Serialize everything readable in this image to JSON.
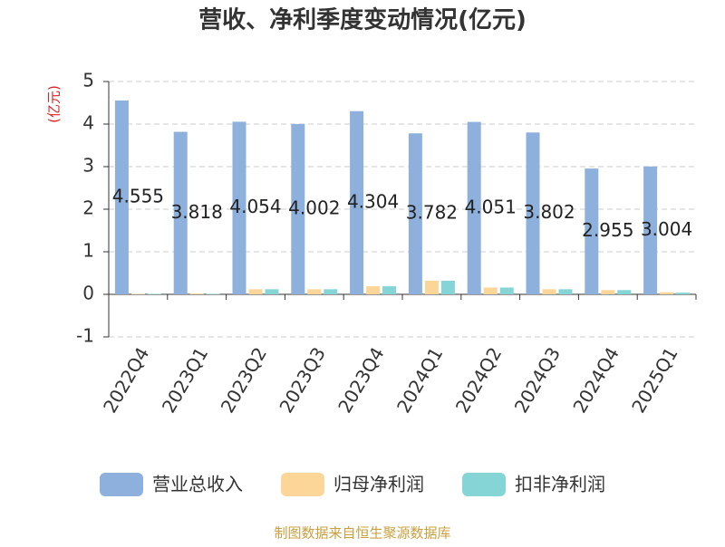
{
  "chart_data": {
    "type": "bar",
    "title": "营收、净利季度变动情况(亿元)",
    "y_label": "(亿元)",
    "categories": [
      "2022Q4",
      "2023Q1",
      "2023Q2",
      "2023Q3",
      "2023Q4",
      "2024Q1",
      "2024Q2",
      "2024Q3",
      "2024Q4",
      "2025Q1"
    ],
    "series": [
      {
        "name": "营业总收入",
        "color": "#8eb0dc",
        "labels": true,
        "values": [
          4.555,
          3.818,
          4.054,
          4.002,
          4.304,
          3.782,
          4.051,
          3.802,
          2.955,
          3.004
        ]
      },
      {
        "name": "归母净利润",
        "color": "#fcd699",
        "values": [
          0.01,
          0.02,
          0.12,
          0.12,
          0.19,
          0.32,
          0.16,
          0.12,
          0.1,
          0.05
        ]
      },
      {
        "name": "扣非净利润",
        "color": "#85d5d6",
        "values": [
          0.01,
          0.01,
          0.12,
          0.12,
          0.19,
          0.32,
          0.16,
          0.12,
          0.1,
          0.04
        ]
      }
    ],
    "ylim": [
      -1,
      5
    ],
    "yticks": [
      -1,
      0,
      1,
      2,
      3,
      4,
      5
    ],
    "grid": true,
    "source": "制图数据来自恒生聚源数据库"
  }
}
